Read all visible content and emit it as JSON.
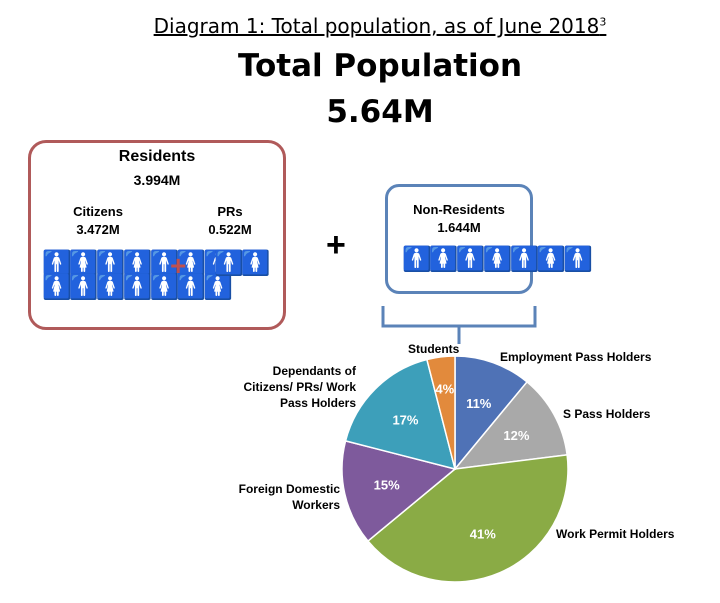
{
  "caption": {
    "text": "Diagram 1: Total population, as of June 2018",
    "sup": "3"
  },
  "title": "Total Population",
  "total": "5.64M",
  "residents": {
    "label": "Residents",
    "value": "3.994M",
    "citizens": {
      "label": "Citizens",
      "value": "3.472M"
    },
    "prs": {
      "label": "PRs",
      "value": "0.522M"
    }
  },
  "non_residents": {
    "label": "Non-Residents",
    "value": "1.644M"
  },
  "plus": "+",
  "colors": {
    "residents_border": "#b05a5a",
    "non_residents_border": "#5b83b8"
  },
  "chart_data": {
    "type": "pie",
    "slices": [
      {
        "label": "Employment Pass Holders",
        "value": 11,
        "display": "11%",
        "color": "#4f72b6"
      },
      {
        "label": "S Pass Holders",
        "value": 12,
        "display": "12%",
        "color": "#a9a9a9"
      },
      {
        "label": "Work Permit Holders",
        "value": 41,
        "display": "41%",
        "color": "#8aab45"
      },
      {
        "label": "Foreign Domestic Workers",
        "value": 15,
        "display": "15%",
        "color": "#7e5a9c"
      },
      {
        "label": "Dependants of Citizens/ PRs/ Work Pass Holders",
        "value": 17,
        "display": "17%",
        "color": "#3d9fba"
      },
      {
        "label": "Students",
        "value": 4,
        "display": "4%",
        "color": "#e28a3c"
      }
    ]
  }
}
